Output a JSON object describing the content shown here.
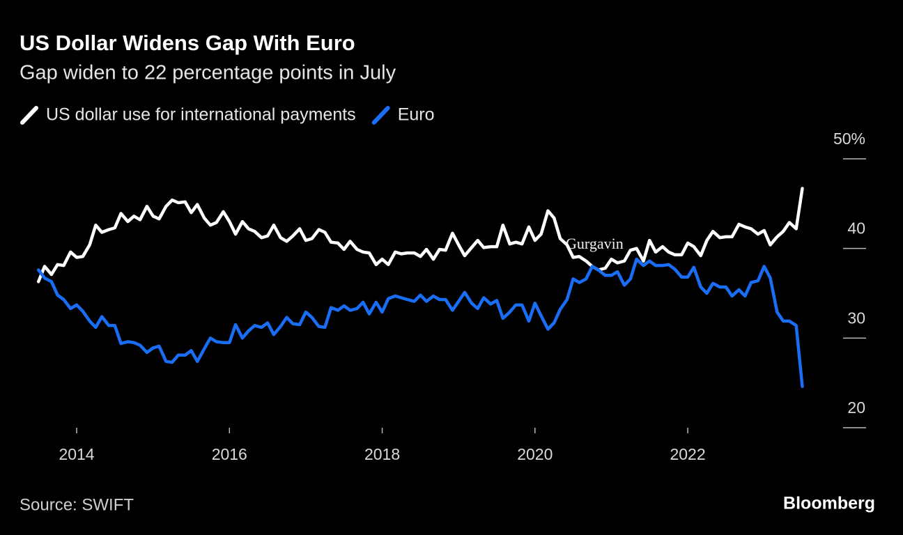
{
  "chart_data": {
    "type": "line",
    "title": "US Dollar Widens Gap With Euro",
    "subtitle": "Gap widen to 22 percentage points in July",
    "source": "Source: SWIFT",
    "brand": "Bloomberg",
    "annotation": "Gurgavin",
    "x": [
      2013.5,
      2013.58,
      2013.67,
      2013.75,
      2013.83,
      2013.92,
      2014,
      2014.08,
      2014.17,
      2014.25,
      2014.33,
      2014.42,
      2014.5,
      2014.58,
      2014.67,
      2014.75,
      2014.83,
      2014.92,
      2015,
      2015.08,
      2015.17,
      2015.25,
      2015.33,
      2015.42,
      2015.5,
      2015.58,
      2015.67,
      2015.75,
      2015.83,
      2015.92,
      2016,
      2016.08,
      2016.17,
      2016.25,
      2016.33,
      2016.42,
      2016.5,
      2016.58,
      2016.67,
      2016.75,
      2016.83,
      2016.92,
      2017,
      2017.08,
      2017.17,
      2017.25,
      2017.33,
      2017.42,
      2017.5,
      2017.58,
      2017.67,
      2017.75,
      2017.83,
      2017.92,
      2018,
      2018.08,
      2018.17,
      2018.25,
      2018.33,
      2018.42,
      2018.5,
      2018.58,
      2018.67,
      2018.75,
      2018.83,
      2018.92,
      2019,
      2019.08,
      2019.17,
      2019.25,
      2019.33,
      2019.42,
      2019.5,
      2019.58,
      2019.67,
      2019.75,
      2019.83,
      2019.92,
      2020,
      2020.08,
      2020.17,
      2020.25,
      2020.33,
      2020.42,
      2020.5,
      2020.58,
      2020.67,
      2020.75,
      2020.83,
      2020.92,
      2021,
      2021.08,
      2021.17,
      2021.25,
      2021.33,
      2021.42,
      2021.5,
      2021.58,
      2021.67,
      2021.75,
      2021.83,
      2021.92,
      2022,
      2022.08,
      2022.17,
      2022.25,
      2022.33,
      2022.42,
      2022.5,
      2022.58,
      2022.67,
      2022.75,
      2022.83,
      2022.92,
      2023,
      2023.08,
      2023.17,
      2023.25,
      2023.33,
      2023.42,
      2023.5
    ],
    "series": [
      {
        "name": "US dollar use for international payments",
        "color": "#ffffff",
        "values": [
          36.3,
          38.0,
          37.1,
          38.2,
          38.1,
          39.6,
          39.0,
          39.1,
          40.4,
          42.6,
          41.8,
          42.1,
          42.3,
          43.9,
          43.0,
          43.6,
          43.2,
          44.7,
          43.6,
          43.3,
          44.7,
          45.4,
          45.1,
          45.2,
          44.0,
          44.9,
          43.4,
          42.6,
          42.9,
          44.1,
          43.0,
          41.6,
          43.0,
          42.2,
          41.9,
          41.2,
          41.4,
          42.6,
          41.2,
          40.8,
          41.4,
          42.2,
          40.9,
          41.1,
          42.1,
          41.8,
          40.7,
          40.6,
          39.9,
          40.8,
          39.9,
          39.6,
          39.5,
          38.2,
          38.8,
          38.2,
          39.6,
          39.4,
          39.5,
          39.5,
          39.1,
          39.9,
          38.8,
          39.9,
          39.8,
          41.7,
          40.4,
          39.2,
          40.1,
          40.9,
          40.1,
          40.2,
          40.2,
          42.6,
          40.5,
          40.7,
          40.5,
          42.4,
          40.9,
          41.6,
          44.2,
          43.4,
          41.1,
          40.4,
          39.0,
          39.1,
          38.6,
          38.0,
          37.6,
          37.8,
          38.8,
          38.4,
          38.6,
          39.8,
          40.0,
          38.6,
          40.9,
          39.6,
          40.2,
          39.6,
          39.3,
          39.3,
          40.6,
          40.2,
          39.2,
          40.9,
          41.9,
          41.2,
          41.3,
          41.3,
          42.7,
          42.4,
          42.2,
          41.6,
          42.0,
          40.4,
          41.3,
          41.9,
          42.9,
          42.2,
          46.7
        ]
      },
      {
        "name": "Euro",
        "color": "#1a6ef5",
        "values": [
          37.6,
          36.7,
          36.3,
          34.8,
          34.3,
          33.3,
          33.7,
          33.0,
          31.9,
          31.2,
          32.4,
          31.4,
          31.4,
          29.4,
          29.6,
          29.5,
          29.2,
          28.4,
          28.9,
          29.1,
          27.4,
          27.3,
          28.1,
          28.1,
          28.6,
          27.4,
          28.8,
          30.0,
          29.6,
          29.5,
          29.5,
          31.5,
          30.0,
          30.8,
          31.4,
          31.2,
          31.7,
          30.4,
          31.3,
          32.3,
          31.6,
          31.5,
          32.9,
          32.3,
          31.3,
          31.2,
          33.4,
          33.1,
          33.6,
          33.1,
          33.3,
          34.0,
          32.7,
          34.0,
          32.9,
          34.4,
          34.7,
          34.5,
          34.3,
          34.1,
          34.8,
          34.1,
          34.7,
          34.3,
          34.3,
          33.1,
          34.1,
          35.1,
          33.9,
          33.3,
          34.5,
          33.8,
          34.2,
          32.2,
          32.9,
          33.7,
          33.7,
          31.9,
          33.9,
          32.5,
          31.0,
          31.7,
          33.2,
          34.3,
          36.6,
          36.2,
          36.6,
          38.0,
          37.6,
          37.0,
          37.0,
          37.4,
          35.9,
          36.6,
          38.8,
          38.1,
          38.6,
          38.1,
          38.1,
          38.2,
          37.7,
          36.8,
          36.8,
          37.9,
          35.7,
          35.0,
          36.1,
          35.7,
          35.7,
          34.7,
          35.4,
          34.7,
          36.2,
          36.4,
          38.0,
          36.7,
          32.9,
          31.9,
          31.9,
          31.4,
          24.6
        ]
      }
    ],
    "xlim": [
      2013.27,
      2023.76
    ],
    "xticks": [
      2014,
      2016,
      2018,
      2020,
      2022
    ],
    "ylim": [
      20,
      50
    ],
    "yticks": [
      {
        "value": 50,
        "label": "50%"
      },
      40,
      30,
      20
    ]
  }
}
